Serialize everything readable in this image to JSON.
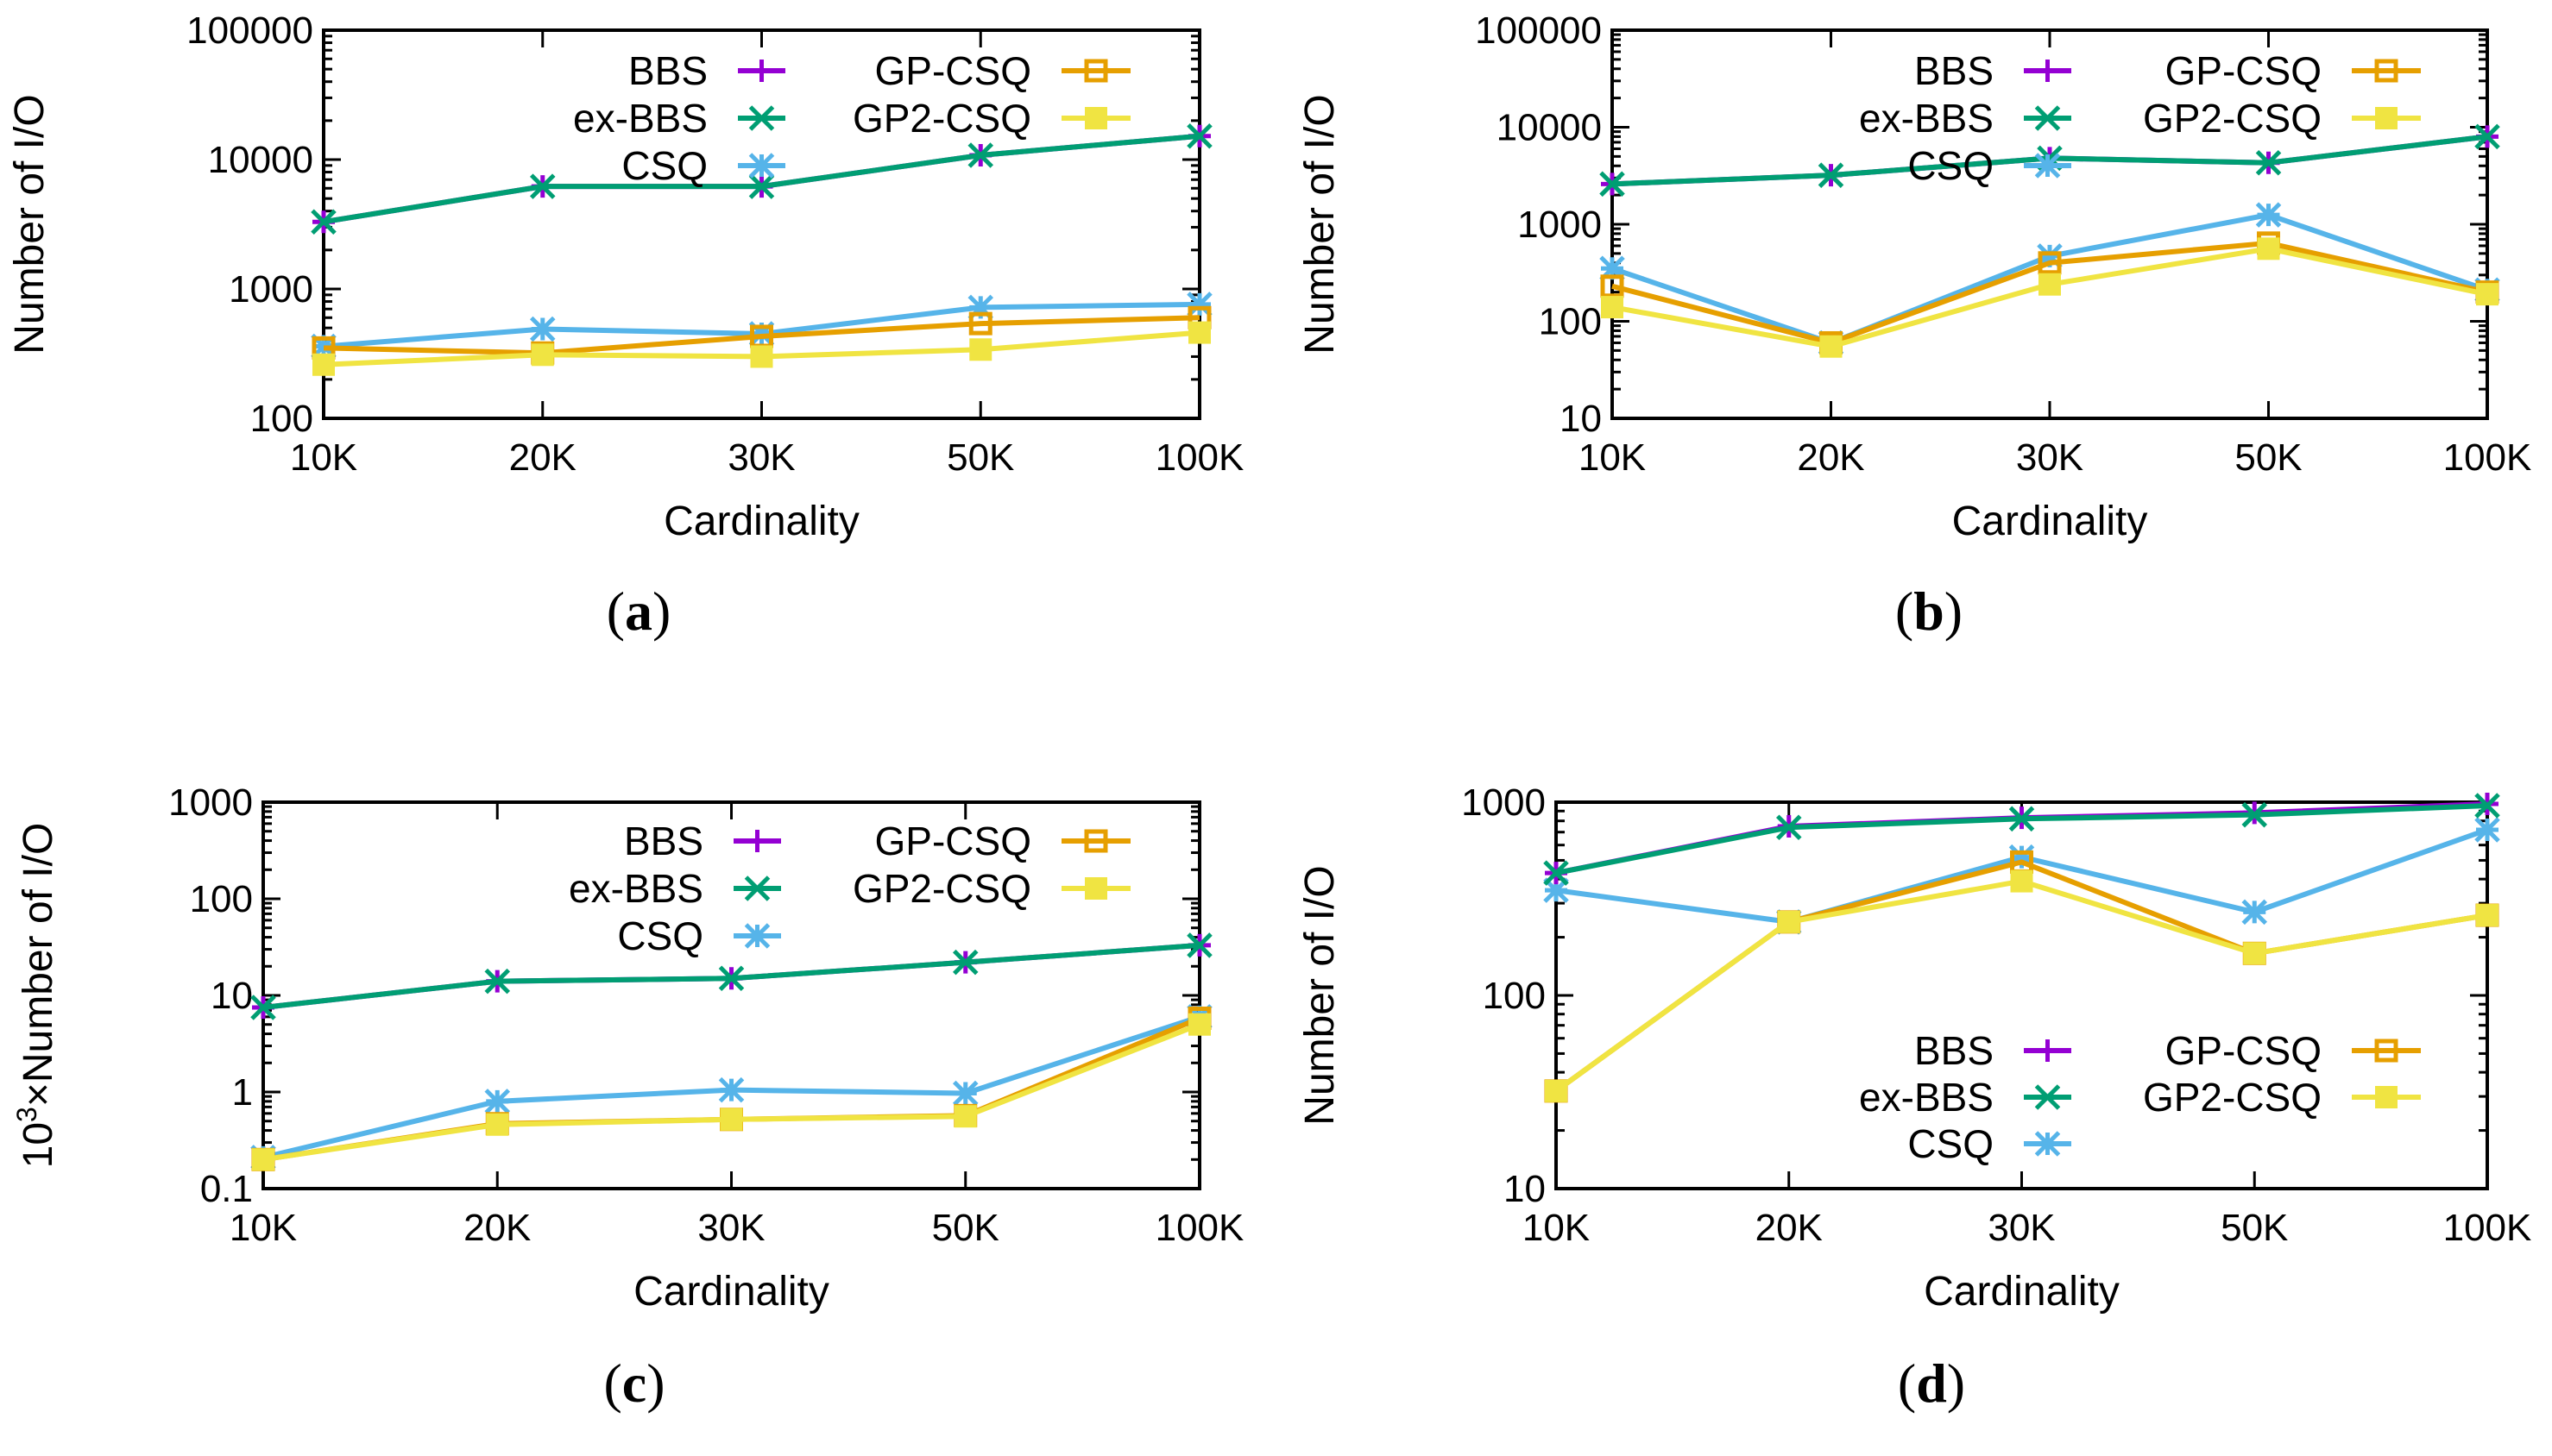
{
  "series_styles": [
    {
      "name": "BBS",
      "color": "#9400D3",
      "marker": "plus"
    },
    {
      "name": "ex-BBS",
      "color": "#009E73",
      "marker": "x"
    },
    {
      "name": "CSQ",
      "color": "#56B4E9",
      "marker": "star"
    },
    {
      "name": "GP-CSQ",
      "color": "#E69F00",
      "marker": "square"
    },
    {
      "name": "GP2-CSQ",
      "color": "#F0E442",
      "marker": "filled-square"
    }
  ],
  "chart_data": [
    {
      "type": "line",
      "caption": "(a)",
      "categories": [
        "10K",
        "20K",
        "30K",
        "50K",
        "100K"
      ],
      "xlabel": "Cardinality",
      "ylabel": "Number of I/O",
      "yscale": "log",
      "ylim": [
        100,
        100000
      ],
      "yticks": [
        100,
        1000,
        10000,
        100000
      ],
      "ytick_labels": [
        "100",
        "1000",
        "10000",
        "100000"
      ],
      "legend_placement": "top-right",
      "series": [
        {
          "name": "BBS",
          "values": [
            3300,
            6200,
            6200,
            10800,
            15200
          ]
        },
        {
          "name": "ex-BBS",
          "values": [
            3300,
            6200,
            6200,
            10800,
            15200
          ]
        },
        {
          "name": "CSQ",
          "values": [
            360,
            490,
            450,
            720,
            760
          ]
        },
        {
          "name": "GP-CSQ",
          "values": [
            350,
            320,
            430,
            540,
            600
          ]
        },
        {
          "name": "GP2-CSQ",
          "values": [
            260,
            310,
            300,
            340,
            460
          ]
        }
      ]
    },
    {
      "type": "line",
      "caption": "(b)",
      "categories": [
        "10K",
        "20K",
        "30K",
        "50K",
        "100K"
      ],
      "xlabel": "Cardinality",
      "ylabel": "Number of I/O",
      "yscale": "log",
      "ylim": [
        10,
        100000
      ],
      "yticks": [
        10,
        100,
        1000,
        10000,
        100000
      ],
      "ytick_labels": [
        "10",
        "100",
        "1000",
        "10000",
        "100000"
      ],
      "legend_placement": "top-right",
      "series": [
        {
          "name": "BBS",
          "values": [
            2600,
            3200,
            4800,
            4300,
            8000
          ]
        },
        {
          "name": "ex-BBS",
          "values": [
            2600,
            3200,
            4800,
            4300,
            8000
          ]
        },
        {
          "name": "CSQ",
          "values": [
            350,
            60,
            470,
            1250,
            210
          ]
        },
        {
          "name": "GP-CSQ",
          "values": [
            230,
            60,
            400,
            640,
            200
          ]
        },
        {
          "name": "GP2-CSQ",
          "values": [
            140,
            55,
            240,
            560,
            190
          ]
        }
      ]
    },
    {
      "type": "line",
      "caption": "(c)",
      "categories": [
        "10K",
        "20K",
        "30K",
        "50K",
        "100K"
      ],
      "xlabel": "Cardinality",
      "ylabel": "10^3×Number of I/O",
      "ylabel_base": "10",
      "ylabel_exp": "3",
      "ylabel_rest": "×Number of I/O",
      "yscale": "log",
      "ylim": [
        0.1,
        1000
      ],
      "yticks": [
        0.1,
        1,
        10,
        100,
        1000
      ],
      "ytick_labels": [
        "0.1",
        "1",
        "10",
        "100",
        "1000"
      ],
      "legend_placement": "top-right",
      "series": [
        {
          "name": "BBS",
          "values": [
            7.5,
            14,
            15,
            22,
            33
          ]
        },
        {
          "name": "ex-BBS",
          "values": [
            7.5,
            14,
            15,
            22,
            33
          ]
        },
        {
          "name": "CSQ",
          "values": [
            0.21,
            0.8,
            1.05,
            0.97,
            6.0
          ]
        },
        {
          "name": "GP-CSQ",
          "values": [
            0.2,
            0.47,
            0.52,
            0.57,
            5.8
          ]
        },
        {
          "name": "GP2-CSQ",
          "values": [
            0.2,
            0.46,
            0.52,
            0.56,
            5.0
          ]
        }
      ]
    },
    {
      "type": "line",
      "caption": "(d)",
      "categories": [
        "10K",
        "20K",
        "30K",
        "50K",
        "100K"
      ],
      "xlabel": "Cardinality",
      "ylabel": "Number of I/O",
      "yscale": "log",
      "ylim": [
        10,
        1000
      ],
      "yticks": [
        10,
        100,
        1000
      ],
      "ytick_labels": [
        "10",
        "100",
        "1000"
      ],
      "legend_placement": "bottom-right",
      "series": [
        {
          "name": "BBS",
          "values": [
            430,
            750,
            830,
            880,
            980
          ]
        },
        {
          "name": "ex-BBS",
          "values": [
            430,
            740,
            820,
            860,
            960
          ]
        },
        {
          "name": "CSQ",
          "values": [
            350,
            240,
            520,
            270,
            720
          ]
        },
        {
          "name": "GP-CSQ",
          "values": [
            32,
            240,
            490,
            165,
            260
          ]
        },
        {
          "name": "GP2-CSQ",
          "values": [
            32,
            240,
            390,
            165,
            260
          ]
        }
      ]
    }
  ]
}
